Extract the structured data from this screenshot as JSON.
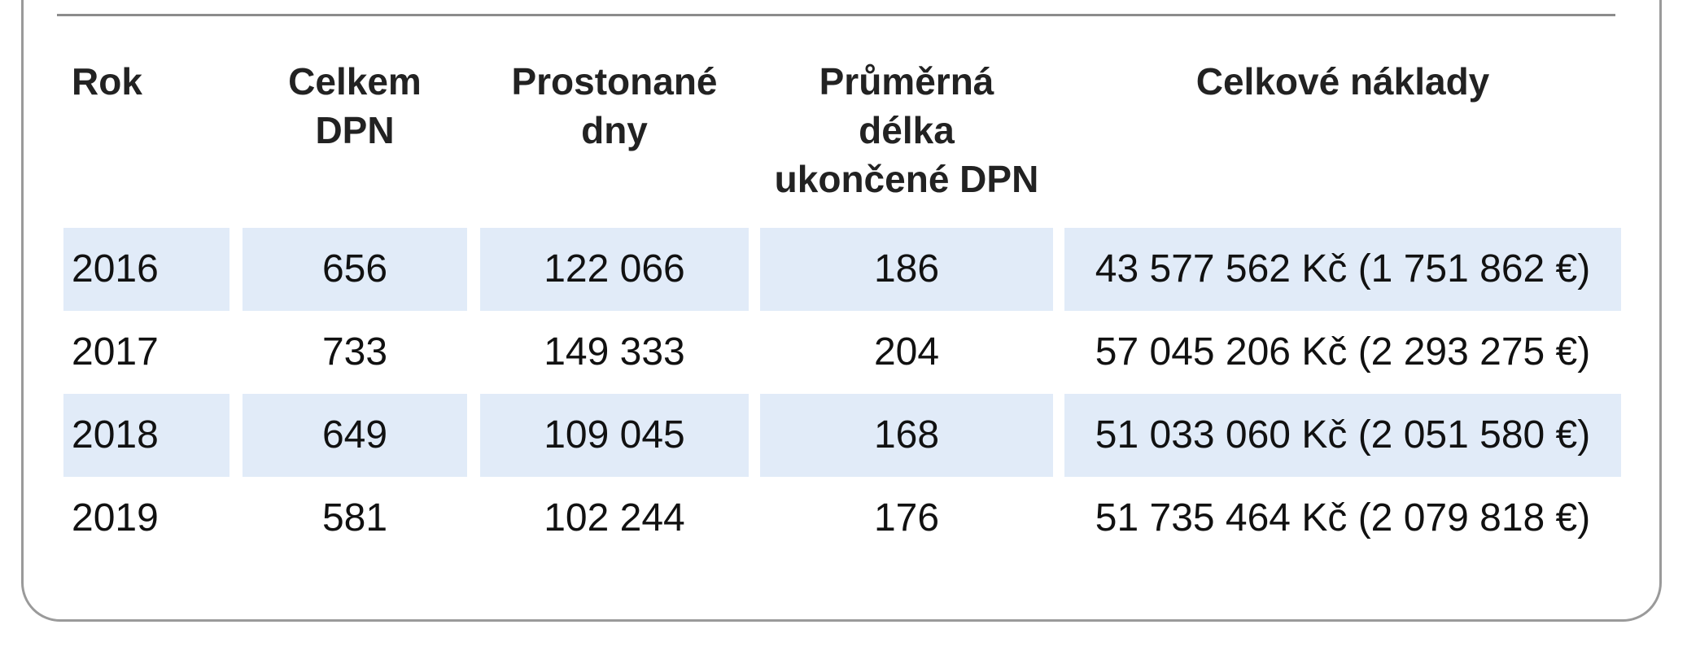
{
  "table": {
    "headers": [
      "Rok",
      "Celkem\nDPN",
      "Prostonané\ndny",
      "Průměrná\ndélka\nukončené DPN",
      "Celkové náklady"
    ],
    "rows": [
      [
        "2016",
        "656",
        "122 066",
        "186",
        "43 577 562 Kč (1 751 862 €)"
      ],
      [
        "2017",
        "733",
        "149 333",
        "204",
        "57 045 206 Kč (2 293 275 €)"
      ],
      [
        "2018",
        "649",
        "109 045",
        "168",
        "51 033 060 Kč (2 051 580 €)"
      ],
      [
        "2019",
        "581",
        "102 244",
        "176",
        "51 735 464 Kč (2 079 818 €)"
      ]
    ]
  },
  "colors": {
    "row_shade": "#e1ebf8",
    "border": "#9a9a9a",
    "text": "#111111"
  }
}
